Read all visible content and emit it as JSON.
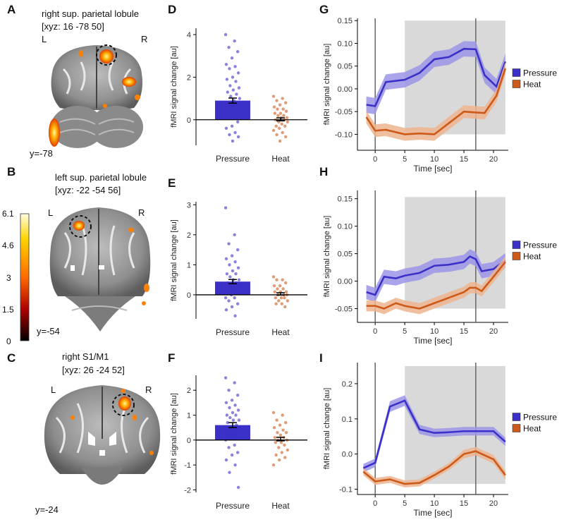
{
  "panels": {
    "A": "A",
    "B": "B",
    "C": "C",
    "D": "D",
    "E": "E",
    "F": "F",
    "G": "G",
    "H": "H",
    "I": "I"
  },
  "brains": [
    {
      "title": "right sup. parietal lobule",
      "coords": "[xyz: 16 -78 50]",
      "left": "L",
      "right": "R",
      "slice": "y=-78"
    },
    {
      "title": "left sup. parietal lobule",
      "coords": "[xyz: -22 -54 56]",
      "left": "L",
      "right": "R",
      "slice": "y=-54"
    },
    {
      "title": "right S1/M1",
      "coords": "[xyz: 26 -24 52]",
      "left": "L",
      "right": "R",
      "slice": "y=-24"
    }
  ],
  "colorbar": {
    "ticks": [
      "6.1",
      "4.6",
      "3",
      "1.5",
      "0"
    ],
    "top_color": "#fffde0",
    "bottom_color": "#000000"
  },
  "colors": {
    "pressure": "#3b30c8",
    "pressure_band": "#9b95e6",
    "heat": "#cc5a1a",
    "heat_band": "#ecb48f",
    "shade": "#d9d9d9"
  },
  "chart_data": [
    {
      "type": "bar",
      "panel": "D",
      "categories": [
        "Pressure",
        "Heat"
      ],
      "values": [
        0.9,
        0.02
      ],
      "errors": [
        0.12,
        0.07
      ],
      "ylabel": "fMRI signal change [au]",
      "ylim": [
        -1.2,
        4.3
      ],
      "yticks": [
        0,
        2,
        4
      ],
      "points": [
        [
          4.0,
          3.7,
          3.4,
          3.2,
          2.9,
          2.6,
          2.5,
          2.4,
          2.2,
          2.0,
          1.9,
          1.8,
          1.6,
          1.5,
          1.4,
          1.3,
          1.2,
          1.1,
          1.0,
          0.9,
          0.8,
          0.7,
          0.6,
          0.5,
          0.3,
          0.1,
          -0.1,
          -0.3,
          -0.4,
          -0.6,
          -0.7,
          -0.8,
          -1.0
        ],
        [
          1.1,
          1.0,
          0.9,
          0.8,
          0.7,
          0.6,
          0.5,
          0.5,
          0.4,
          0.3,
          0.3,
          0.2,
          0.2,
          0.1,
          0.1,
          0.0,
          0.0,
          -0.1,
          -0.1,
          -0.2,
          -0.3,
          -0.3,
          -0.4,
          -0.5,
          -0.6,
          -0.7,
          -0.8,
          -1.0
        ]
      ]
    },
    {
      "type": "bar",
      "panel": "E",
      "categories": [
        "Pressure",
        "Heat"
      ],
      "values": [
        0.44,
        0.03
      ],
      "errors": [
        0.07,
        0.04
      ],
      "ylabel": "fMRI signal change [au]",
      "ylim": [
        -0.8,
        3.1
      ],
      "yticks": [
        0,
        1,
        2,
        3
      ],
      "points": [
        [
          2.9,
          2.0,
          1.7,
          1.5,
          1.3,
          1.2,
          1.1,
          1.0,
          0.9,
          0.8,
          0.7,
          0.7,
          0.6,
          0.5,
          0.5,
          0.4,
          0.4,
          0.3,
          0.3,
          0.2,
          0.2,
          0.1,
          0.0,
          -0.1,
          -0.1,
          -0.2,
          -0.3,
          -0.4,
          -0.5,
          -0.7
        ],
        [
          0.6,
          0.5,
          0.5,
          0.4,
          0.3,
          0.3,
          0.2,
          0.2,
          0.1,
          0.1,
          0.1,
          0.0,
          0.0,
          0.0,
          -0.1,
          -0.1,
          -0.1,
          -0.2,
          -0.2,
          -0.3,
          -0.3,
          -0.4
        ]
      ]
    },
    {
      "type": "bar",
      "panel": "F",
      "categories": [
        "Pressure",
        "Heat"
      ],
      "values": [
        0.6,
        0.04
      ],
      "errors": [
        0.1,
        0.07
      ],
      "ylabel": "fMRI signal change [au]",
      "ylim": [
        -2.1,
        2.6
      ],
      "yticks": [
        -2,
        -1,
        0,
        1,
        2
      ],
      "points": [
        [
          2.5,
          2.3,
          2.0,
          1.8,
          1.6,
          1.5,
          1.4,
          1.3,
          1.2,
          1.1,
          1.0,
          1.0,
          0.9,
          0.8,
          0.8,
          0.7,
          0.6,
          0.5,
          0.5,
          0.4,
          0.3,
          0.2,
          0.1,
          0.0,
          -0.2,
          -0.3,
          -0.5,
          -0.6,
          -0.8,
          -1.0,
          -1.3,
          -1.9
        ],
        [
          1.1,
          1.0,
          0.8,
          0.7,
          0.6,
          0.5,
          0.4,
          0.3,
          0.3,
          0.2,
          0.1,
          0.1,
          0.0,
          0.0,
          -0.1,
          -0.1,
          -0.2,
          -0.3,
          -0.4,
          -0.5,
          -0.6,
          -0.7,
          -0.8,
          -1.0
        ]
      ]
    },
    {
      "type": "line",
      "panel": "G",
      "xlabel": "Time [sec]",
      "ylabel": "fMRI signal change [au]",
      "xlim": [
        -3,
        22.5
      ],
      "ylim": [
        -0.135,
        0.155
      ],
      "xticks": [
        0,
        5,
        10,
        15,
        20
      ],
      "yticks": [
        -0.1,
        -0.05,
        0.0,
        0.05,
        0.1,
        0.15
      ],
      "yticklabels": [
        "-0.10",
        "-0.05",
        "0.00",
        "0.05",
        "0.10",
        "0.15"
      ],
      "vlines": [
        0,
        17
      ],
      "shade": {
        "x": [
          5,
          22
        ],
        "y": [
          -0.1,
          0.15
        ]
      },
      "x": [
        -1.5,
        0,
        1.8,
        5,
        7.5,
        10,
        12.5,
        15,
        17,
        18.5,
        20.5,
        22
      ],
      "series": [
        {
          "name": "Pressure",
          "values": [
            -0.035,
            -0.038,
            0.015,
            0.02,
            0.035,
            0.065,
            0.07,
            0.088,
            0.087,
            0.03,
            0.005,
            0.06
          ],
          "err": [
            0.018,
            0.018,
            0.017,
            0.017,
            0.017,
            0.017,
            0.017,
            0.017,
            0.017,
            0.017,
            0.017,
            0.017
          ]
        },
        {
          "name": "Heat",
          "values": [
            -0.062,
            -0.092,
            -0.09,
            -0.1,
            -0.098,
            -0.1,
            -0.075,
            -0.05,
            -0.052,
            -0.053,
            -0.015,
            0.045
          ],
          "err": [
            0.014,
            0.014,
            0.014,
            0.014,
            0.014,
            0.014,
            0.014,
            0.014,
            0.014,
            0.014,
            0.014,
            0.014
          ]
        }
      ]
    },
    {
      "type": "line",
      "panel": "H",
      "xlabel": "Time [sec]",
      "ylabel": "fMRI signal change [au]",
      "xlim": [
        -3,
        22.5
      ],
      "ylim": [
        -0.075,
        0.165
      ],
      "xticks": [
        0,
        5,
        10,
        15,
        20
      ],
      "yticks": [
        -0.05,
        0.0,
        0.05,
        0.1,
        0.15
      ],
      "yticklabels": [
        "-0.05",
        "0.00",
        "0.05",
        "0.10",
        "0.15"
      ],
      "vlines": [
        0,
        17
      ],
      "shade": {
        "x": [
          5,
          22
        ],
        "y": [
          -0.05,
          0.153
        ]
      },
      "x": [
        -1.5,
        0,
        1.5,
        3.5,
        5,
        7.5,
        10,
        12.5,
        15,
        16,
        17,
        18,
        20,
        22
      ],
      "series": [
        {
          "name": "Pressure",
          "values": [
            -0.02,
            -0.025,
            0.008,
            0.005,
            0.01,
            0.015,
            0.028,
            0.03,
            0.035,
            0.045,
            0.04,
            0.018,
            0.022,
            0.038
          ],
          "err": [
            0.013,
            0.013,
            0.013,
            0.013,
            0.013,
            0.013,
            0.013,
            0.013,
            0.013,
            0.013,
            0.013,
            0.013,
            0.013,
            0.013
          ]
        },
        {
          "name": "Heat",
          "values": [
            -0.045,
            -0.045,
            -0.05,
            -0.04,
            -0.045,
            -0.05,
            -0.04,
            -0.03,
            -0.02,
            -0.012,
            -0.012,
            -0.018,
            0.008,
            0.035
          ],
          "err": [
            0.01,
            0.01,
            0.01,
            0.01,
            0.01,
            0.01,
            0.01,
            0.01,
            0.01,
            0.01,
            0.01,
            0.01,
            0.01,
            0.01
          ]
        }
      ]
    },
    {
      "type": "line",
      "panel": "I",
      "xlabel": "Time [sec]",
      "ylabel": "fMRI signal change [au]",
      "xlim": [
        -3,
        22.5
      ],
      "ylim": [
        -0.115,
        0.26
      ],
      "xticks": [
        0,
        5,
        10,
        15,
        20
      ],
      "yticks": [
        -0.1,
        0.0,
        0.1,
        0.2
      ],
      "yticklabels": [
        "-0.1",
        "0.0",
        "0.1",
        "0.2"
      ],
      "vlines": [
        0,
        17
      ],
      "shade": {
        "x": [
          5,
          22
        ],
        "y": [
          -0.085,
          0.25
        ]
      },
      "x": [
        -2,
        0,
        2.5,
        5,
        7.5,
        10,
        12.5,
        15,
        17,
        20,
        22
      ],
      "series": [
        {
          "name": "Pressure",
          "values": [
            -0.04,
            -0.025,
            0.135,
            0.152,
            0.07,
            0.06,
            0.062,
            0.065,
            0.065,
            0.065,
            0.035
          ],
          "err": [
            0.012,
            0.012,
            0.015,
            0.015,
            0.013,
            0.012,
            0.012,
            0.012,
            0.012,
            0.012,
            0.012
          ]
        },
        {
          "name": "Heat",
          "values": [
            -0.05,
            -0.078,
            -0.072,
            -0.085,
            -0.082,
            -0.06,
            -0.035,
            0.0,
            0.008,
            -0.015,
            -0.06
          ],
          "err": [
            0.01,
            0.01,
            0.01,
            0.01,
            0.01,
            0.01,
            0.01,
            0.012,
            0.012,
            0.012,
            0.012
          ]
        }
      ]
    }
  ]
}
